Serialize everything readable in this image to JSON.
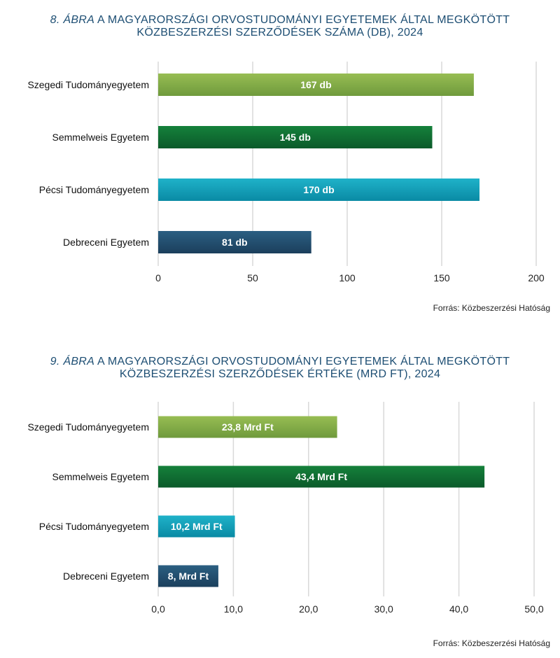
{
  "chart_data": [
    {
      "type": "bar",
      "orientation": "horizontal",
      "title_number": "8. ÁBRA",
      "title_line1": "A MAGYARORSZÁGI ORVOSTUDOMÁNYI EGYETEMEK ÁLTAL MEGKÖTÖTT",
      "title_line2": "KÖZBESZERZÉSI SZERZŐDÉSEK SZÁMA (DB), 2024",
      "categories": [
        "Szegedi Tudományegyetem",
        "Semmelweis Egyetem",
        "Pécsi Tudományegyetem",
        "Debreceni Egyetem"
      ],
      "values": [
        167,
        145,
        170,
        81
      ],
      "data_labels": [
        "167 db",
        "145 db",
        "170 db",
        "81 db"
      ],
      "colors": [
        [
          "#97bd53",
          "#6f9a3c"
        ],
        [
          "#15813b",
          "#0b5a2a"
        ],
        [
          "#1fb2c9",
          "#0a8aa4"
        ],
        [
          "#2b5f82",
          "#1b3f5c"
        ]
      ],
      "xlim": [
        0,
        200
      ],
      "xticks": [
        0,
        50,
        100,
        150,
        200
      ],
      "xtick_labels": [
        "0",
        "50",
        "100",
        "150",
        "200"
      ],
      "grid": true,
      "source": "Forrás: Közbeszerzési Hatóság"
    },
    {
      "type": "bar",
      "orientation": "horizontal",
      "title_number": "9. ÁBRA",
      "title_line1": "A MAGYARORSZÁGI ORVOSTUDOMÁNYI EGYETEMEK ÁLTAL MEGKÖTÖTT",
      "title_line2": "KÖZBESZERZÉSI SZERZŐDÉSEK ÉRTÉKE (MRD FT), 2024",
      "categories": [
        "Szegedi Tudományegyetem",
        "Semmelweis Egyetem",
        "Pécsi Tudományegyetem",
        "Debreceni Egyetem"
      ],
      "values": [
        23.8,
        43.4,
        10.2,
        8.0
      ],
      "data_labels": [
        "23,8 Mrd Ft",
        "43,4 Mrd Ft",
        "10,2 Mrd Ft",
        "8, Mrd Ft"
      ],
      "colors": [
        [
          "#97bd53",
          "#6f9a3c"
        ],
        [
          "#15813b",
          "#0b5a2a"
        ],
        [
          "#1fb2c9",
          "#0a8aa4"
        ],
        [
          "#2b5f82",
          "#1b3f5c"
        ]
      ],
      "xlim": [
        0,
        50
      ],
      "xticks": [
        0,
        10,
        20,
        30,
        40,
        50
      ],
      "xtick_labels": [
        "0,0",
        "10,0",
        "20,0",
        "30,0",
        "40,0",
        "50,0"
      ],
      "grid": true,
      "source": "Forrás: Közbeszerzési Hatóság"
    }
  ]
}
